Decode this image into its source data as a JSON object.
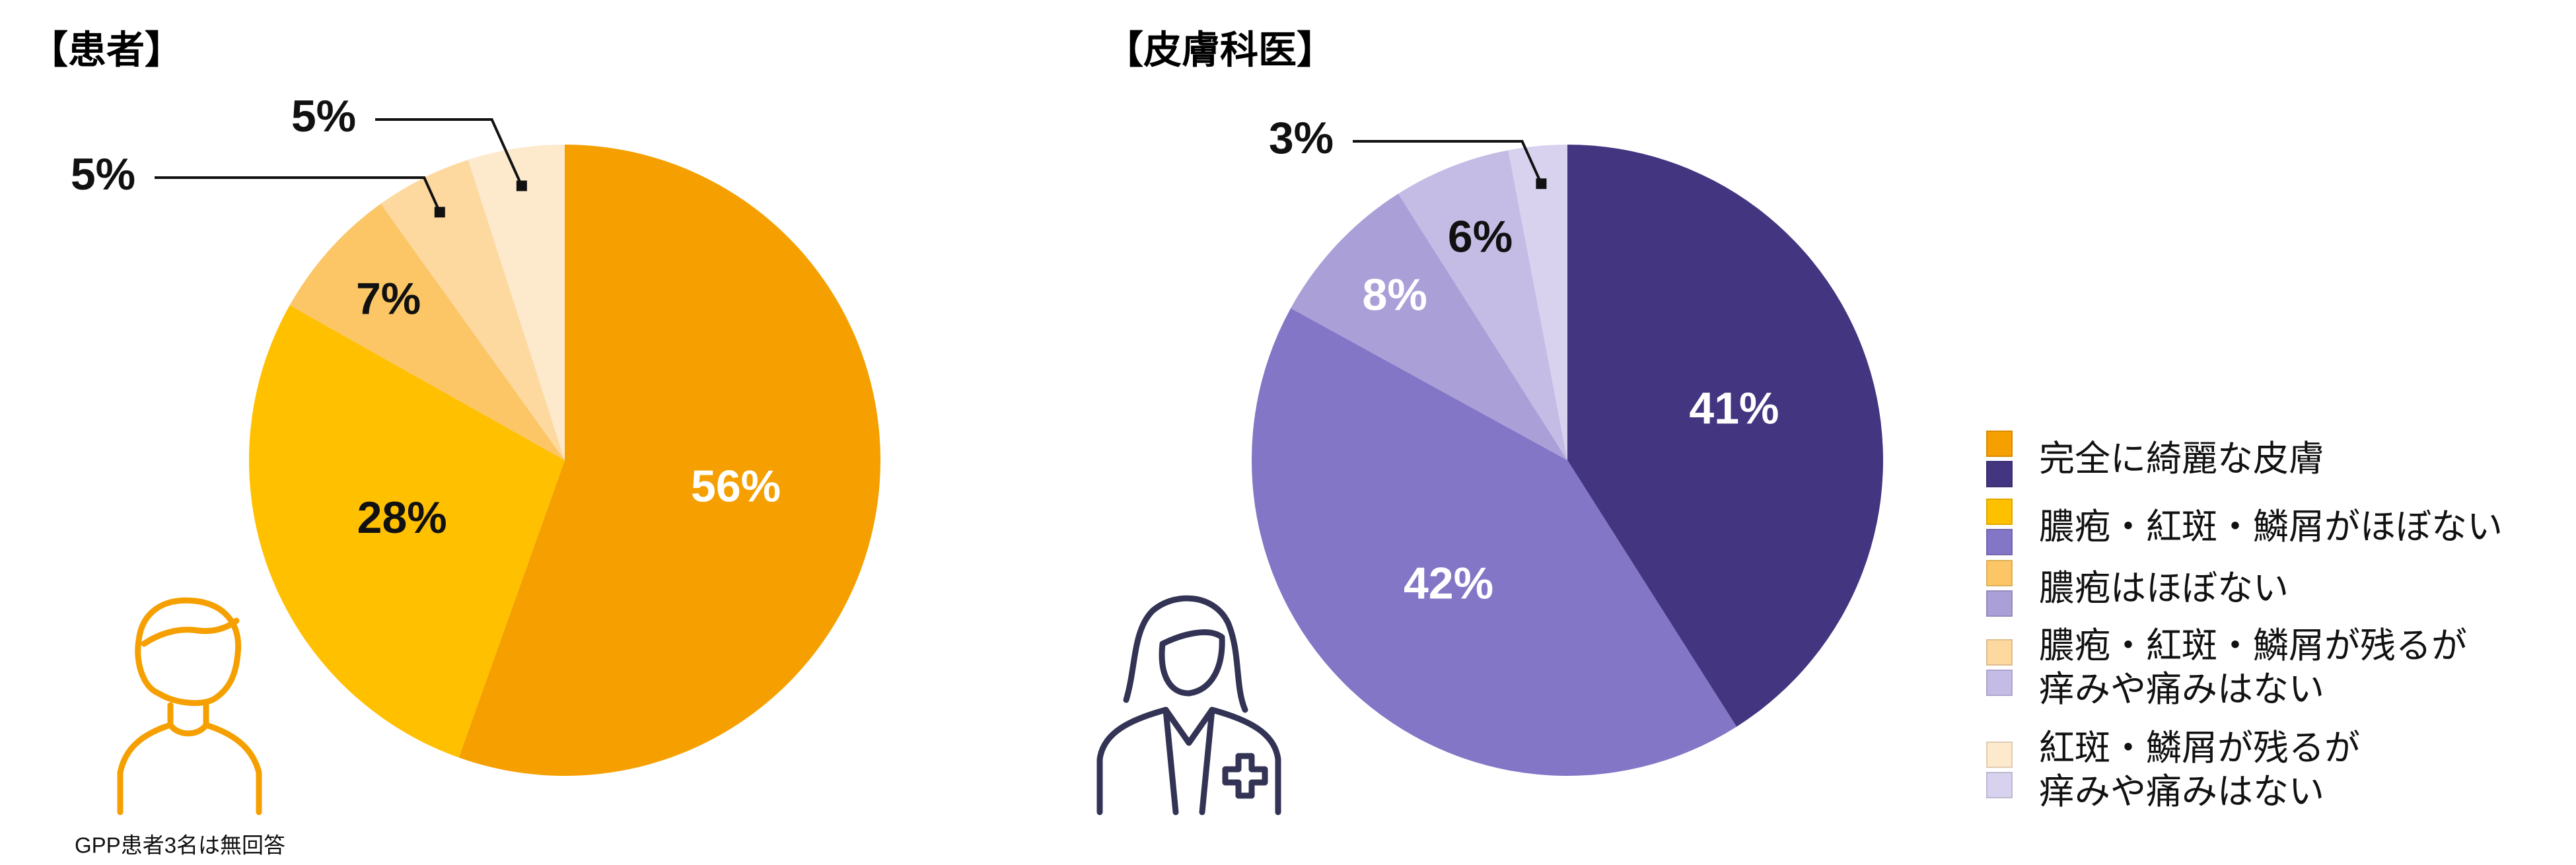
{
  "chart_data": [
    {
      "type": "pie",
      "title": "【患者】",
      "categories": [
        "完全に綺麗な皮膚",
        "膿疱・紅斑・鱗屑がほぼない",
        "膿疱はほぼない",
        "膿疱・紅斑・鱗屑が残るが\n痒みや痛みはない",
        "紅斑・鱗屑が残るが\n痒みや痛みはない"
      ],
      "values": [
        56,
        28,
        7,
        5,
        5
      ],
      "value_labels": [
        "56%",
        "28%",
        "7%",
        "5%",
        "5%"
      ],
      "colors": [
        "#f5a000",
        "#ffc000",
        "#fcc666",
        "#fdd9a0",
        "#fde9cc"
      ],
      "note": "GPP患者3名は無回答",
      "legend": "right"
    },
    {
      "type": "pie",
      "title": "【皮膚科医】",
      "categories": [
        "完全に綺麗な皮膚",
        "膿疱・紅斑・鱗屑がほぼない",
        "膿疱はほぼない",
        "膿疱・紅斑・鱗屑が残るが\n痒みや痛みはない",
        "紅斑・鱗屑が残るが\n痒みや痛みはない"
      ],
      "values": [
        41,
        42,
        8,
        6,
        3
      ],
      "value_labels": [
        "41%",
        "42%",
        "8%",
        "6%",
        "3%"
      ],
      "colors": [
        "#433580",
        "#8476c6",
        "#ab9fd8",
        "#c5bce6",
        "#d8d2ef"
      ],
      "legend": "right"
    }
  ]
}
